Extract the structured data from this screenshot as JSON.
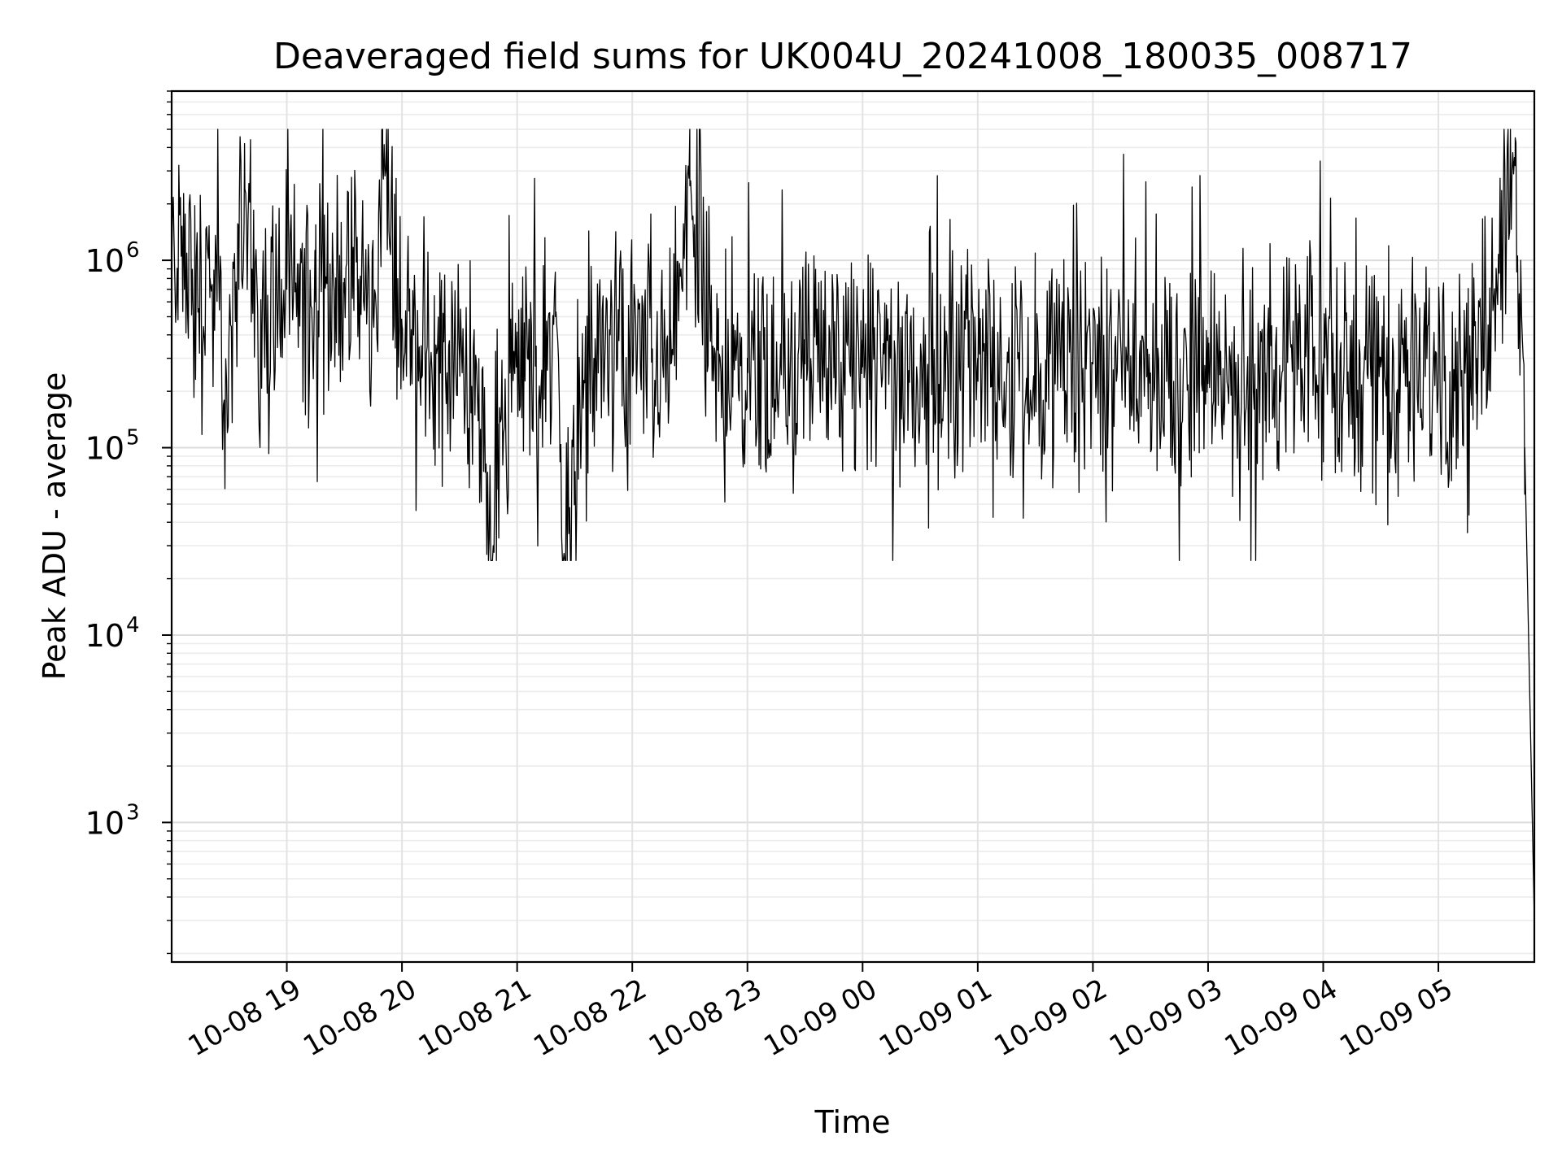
{
  "chart_data": {
    "type": "line",
    "title": "Deaveraged field sums for UK004U_20241008_180035_008717",
    "xlabel": "Time",
    "ylabel": "Peak ADU - average",
    "xlim": [
      "2024-10-08 18:00",
      "2024-10-09 05:50"
    ],
    "ylim": [
      180,
      8000000
    ],
    "yscale": "log",
    "grid": true,
    "x_ticks": [
      "10-08 19",
      "10-08 20",
      "10-08 21",
      "10-08 22",
      "10-08 23",
      "10-09 00",
      "10-09 01",
      "10-09 02",
      "10-09 03",
      "10-09 04",
      "10-09 05"
    ],
    "y_ticks": [
      {
        "value": 1000,
        "base": "10",
        "exp": "3"
      },
      {
        "value": 10000,
        "base": "10",
        "exp": "4"
      },
      {
        "value": 100000,
        "base": "10",
        "exp": "5"
      },
      {
        "value": 1000000,
        "base": "10",
        "exp": "6"
      }
    ],
    "line_color": "#000000",
    "series": [
      {
        "x": [
          "2024-10-08 18:00",
          "2024-10-08 18:05",
          "2024-10-08 18:12",
          "2024-10-08 18:20",
          "2024-10-08 18:28",
          "2024-10-08 18:35",
          "2024-10-08 18:38",
          "2024-10-08 18:45",
          "2024-10-08 18:50",
          "2024-10-08 19:00",
          "2024-10-08 19:15",
          "2024-10-08 19:30",
          "2024-10-08 19:45",
          "2024-10-08 19:50",
          "2024-10-08 20:00",
          "2024-10-08 20:10",
          "2024-10-08 20:20",
          "2024-10-08 20:30",
          "2024-10-08 20:40",
          "2024-10-08 20:45",
          "2024-10-08 20:50",
          "2024-10-08 21:00",
          "2024-10-08 21:10",
          "2024-10-08 21:20",
          "2024-10-08 21:25",
          "2024-10-08 21:40",
          "2024-10-08 22:00",
          "2024-10-08 22:20",
          "2024-10-08 22:30",
          "2024-10-08 22:45",
          "2024-10-08 23:00",
          "2024-10-08 23:30",
          "2024-10-09 00:00",
          "2024-10-09 00:30",
          "2024-10-09 01:00",
          "2024-10-09 01:30",
          "2024-10-09 02:00",
          "2024-10-09 02:30",
          "2024-10-09 03:00",
          "2024-10-09 03:30",
          "2024-10-09 04:00",
          "2024-10-09 04:30",
          "2024-10-09 05:00",
          "2024-10-09 05:20",
          "2024-10-09 05:40",
          "2024-10-09 05:45",
          "2024-10-09 05:50"
        ],
        "y": [
          900000,
          1400000,
          600000,
          800000,
          200000,
          700000,
          4200000,
          300000,
          650000,
          700000,
          600000,
          800000,
          500000,
          3100000,
          450000,
          350000,
          250000,
          300000,
          200000,
          30000,
          60000,
          350000,
          200000,
          500000,
          25000,
          300000,
          350000,
          280000,
          2500000,
          200000,
          300000,
          280000,
          270000,
          250000,
          300000,
          260000,
          280000,
          250000,
          220000,
          250000,
          280000,
          270000,
          260000,
          300000,
          3200000,
          100000,
          300
        ]
      }
    ],
    "noise_band": {
      "x_start": "2024-10-08 18:00",
      "x_end": "2024-10-09 05:45",
      "typical_low": 100000,
      "typical_high": 1000000,
      "peak_max": 5000000,
      "dip_min": 25000
    }
  }
}
